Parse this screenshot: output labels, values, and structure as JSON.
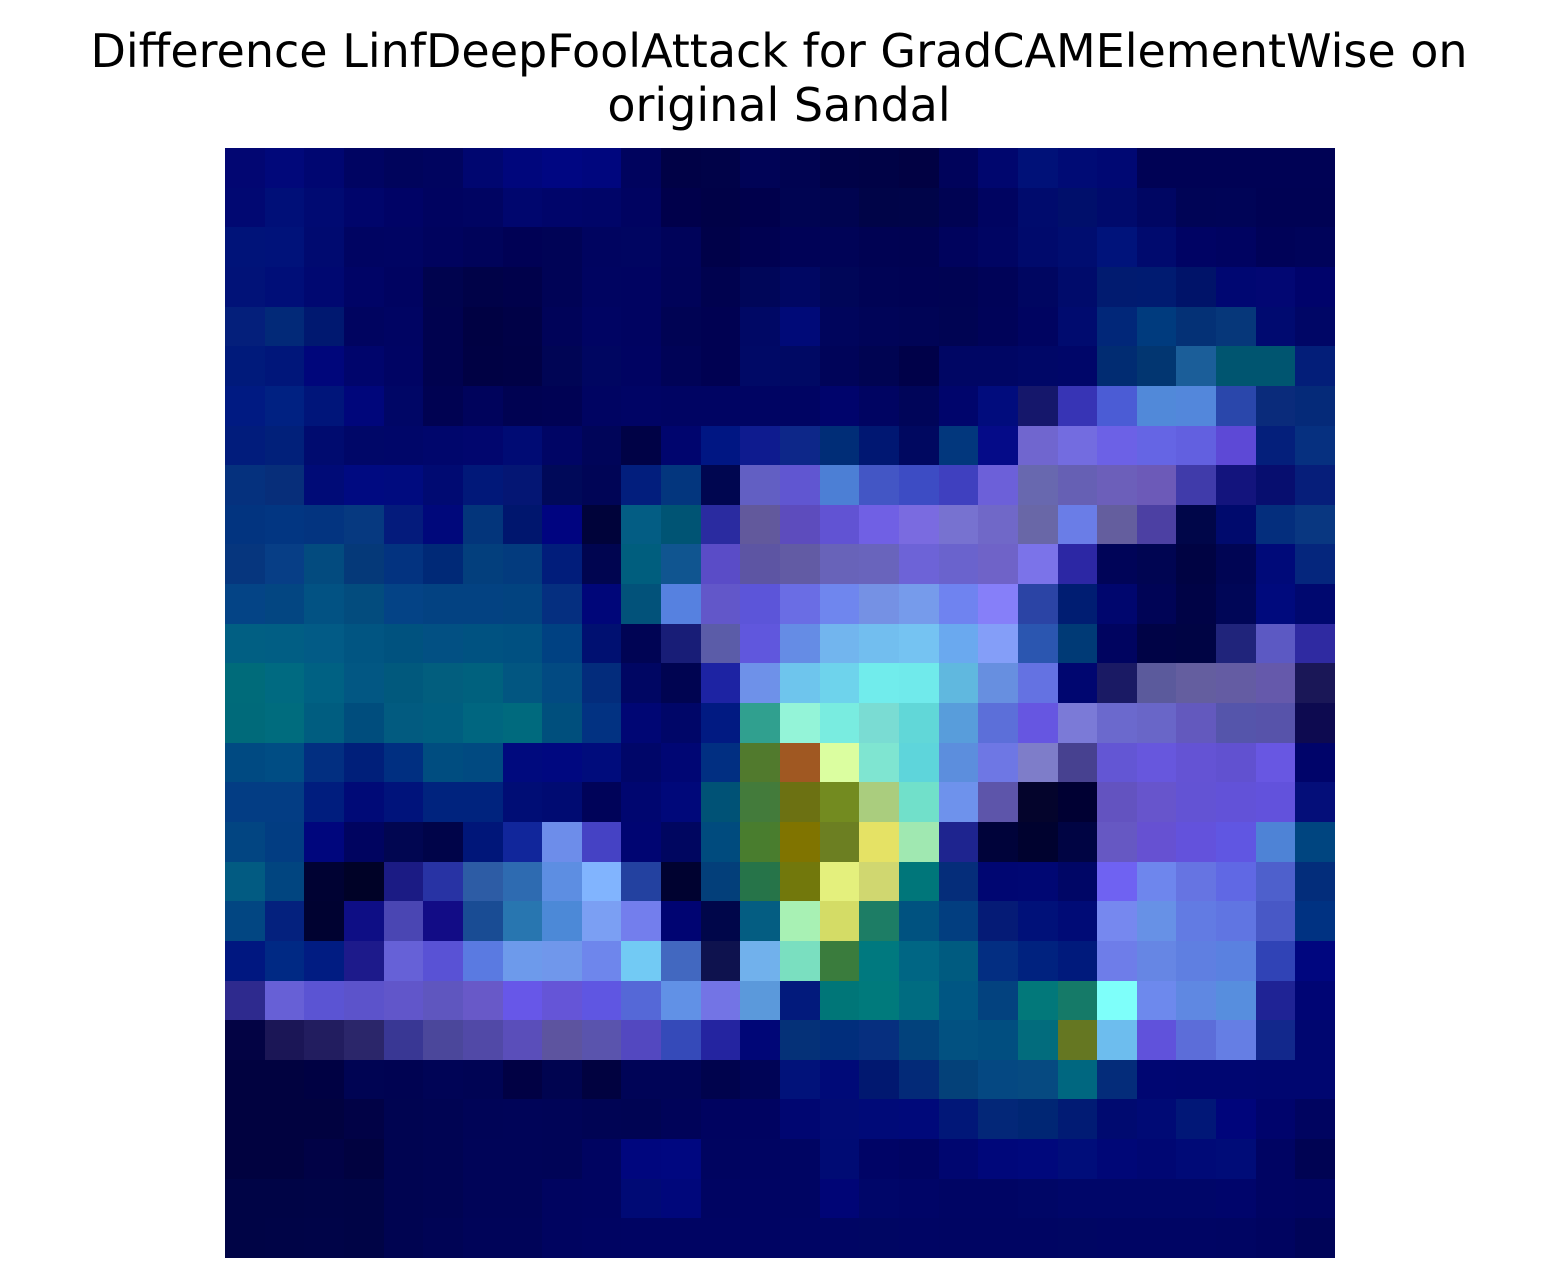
{
  "chart_data": {
    "type": "heatmap",
    "title": "Difference LinfDeepFoolAttack for GradCAMElementWise on original Sandal",
    "title_lines": [
      "Difference LinfDeepFoolAttack for GradCAMElementWise on",
      "original Sandal"
    ],
    "axes_visible": false,
    "xlabel": "",
    "ylabel": "",
    "grid": false,
    "legend": "none",
    "rows": 28,
    "cols": 28,
    "cells": [
      [
        "#020672",
        "#01087a",
        "#000671",
        "#000462",
        "#00045c",
        "#00045f",
        "#000670",
        "#00067c",
        "#000682",
        "#00067e",
        "#00035e",
        "#000146",
        "#000248",
        "#000356",
        "#000351",
        "#000248",
        "#000246",
        "#010143",
        "#00035b",
        "#00066e",
        "#001178",
        "#000b75",
        "#000873",
        "#000255",
        "#000255",
        "#000255",
        "#000255",
        "#000255"
      ],
      [
        "#010872",
        "#000f78",
        "#000a72",
        "#00056b",
        "#000366",
        "#000360",
        "#000462",
        "#00066e",
        "#00056a",
        "#000568",
        "#000361",
        "#00004b",
        "#000147",
        "#00004c",
        "#000452",
        "#000450",
        "#000448",
        "#000449",
        "#000353",
        "#000461",
        "#000b6d",
        "#000f6b",
        "#000a6c",
        "#000663",
        "#000456",
        "#000457",
        "#000254",
        "#000254"
      ],
      [
        "#001379",
        "#00127a",
        "#000a70",
        "#000462",
        "#000463",
        "#00035e",
        "#00035a",
        "#000155",
        "#000356",
        "#000460",
        "#000561",
        "#00035a",
        "#000149",
        "#000151",
        "#000257",
        "#000357",
        "#000253",
        "#000252",
        "#00035d",
        "#000563",
        "#000a6c",
        "#000d70",
        "#00137b",
        "#000a6e",
        "#000364",
        "#000361",
        "#000258",
        "#00035a"
      ],
      [
        "#011278",
        "#000e78",
        "#000871",
        "#000466",
        "#000361",
        "#00034e",
        "#000248",
        "#00014b",
        "#000356",
        "#000461",
        "#000361",
        "#000359",
        "#00024f",
        "#000659",
        "#000763",
        "#000658",
        "#000355",
        "#000254",
        "#000353",
        "#000358",
        "#000661",
        "#000b6b",
        "#011b70",
        "#001b71",
        "#001369",
        "#000772",
        "#020773",
        "#00036b"
      ],
      [
        "#041f7b",
        "#022978",
        "#001870",
        "#000460",
        "#000463",
        "#00024f",
        "#000143",
        "#000147",
        "#000359",
        "#000463",
        "#000361",
        "#000354",
        "#000152",
        "#000865",
        "#000a78",
        "#00055c",
        "#000458",
        "#000456",
        "#000453",
        "#000359",
        "#000461",
        "#000b6f",
        "#012779",
        "#003b7e",
        "#043176",
        "#06377a",
        "#000a70",
        "#000666"
      ],
      [
        "#001a7b",
        "#00167a",
        "#00067b",
        "#00056c",
        "#000464",
        "#00024f",
        "#000144",
        "#000146",
        "#000555",
        "#000661",
        "#000362",
        "#000357",
        "#000152",
        "#000966",
        "#000964",
        "#000459",
        "#000452",
        "#000149",
        "#000664",
        "#000664",
        "#000767",
        "#000669",
        "#012c72",
        "#023671",
        "#1b5e99",
        "#005570",
        "#005570",
        "#031e79"
      ],
      [
        "#001a82",
        "#002182",
        "#00157a",
        "#00067b",
        "#000666",
        "#000252",
        "#00035c",
        "#000252",
        "#000254",
        "#000462",
        "#000465",
        "#000463",
        "#000463",
        "#000463",
        "#000463",
        "#00046c",
        "#000462",
        "#000559",
        "#00056c",
        "#010c7d",
        "#15176b",
        "#3734b5",
        "#4b5cd5",
        "#5189d9",
        "#5387db",
        "#2a47ab",
        "#0a2b7b",
        "#052a79"
      ],
      [
        "#011c7c",
        "#01207a",
        "#000b6f",
        "#000768",
        "#000669",
        "#00066c",
        "#01066e",
        "#000b74",
        "#000565",
        "#000559",
        "#000246",
        "#00056e",
        "#001683",
        "#0e1b8f",
        "#0d2789",
        "#002d77",
        "#001772",
        "#000860",
        "#02377d",
        "#050b88",
        "#7066cf",
        "#736ce0",
        "#6c61e6",
        "#6565e4",
        "#6260e0",
        "#5d49d6",
        "#041f7b",
        "#063080"
      ],
      [
        "#05317e",
        "#072e7a",
        "#000b77",
        "#000a81",
        "#000b7f",
        "#000a72",
        "#011879",
        "#041674",
        "#000959",
        "#000556",
        "#021e7d",
        "#03367e",
        "#000650",
        "#625fc3",
        "#6056d1",
        "#4c7fd5",
        "#4356c5",
        "#3d4cc4",
        "#3f40bf",
        "#6c60d9",
        "#6868af",
        "#6660b4",
        "#6c5fba",
        "#6c5ab8",
        "#403baa",
        "#13147d",
        "#070e6f",
        "#061e7a"
      ],
      [
        "#023480",
        "#023682",
        "#033480",
        "#063980",
        "#041b7c",
        "#00087b",
        "#03357b",
        "#00166e",
        "#000480",
        "#00033a",
        "#035d84",
        "#005474",
        "#2a2ba0",
        "#62599c",
        "#5d4cbd",
        "#6153d3",
        "#7060e4",
        "#7a6be0",
        "#7772d0",
        "#7068c8",
        "#6967a7",
        "#6a7de7",
        "#645e9e",
        "#4c40a3",
        "#000649",
        "#000a6d",
        "#042e7d",
        "#093781"
      ],
      [
        "#06367e",
        "#073e86",
        "#034b7f",
        "#053979",
        "#033380",
        "#002977",
        "#033f7d",
        "#033b7e",
        "#011d7b",
        "#000550",
        "#005e7e",
        "#105590",
        "#5a4cc7",
        "#5d55a3",
        "#625ba4",
        "#6863b9",
        "#6964bc",
        "#6d63d7",
        "#6a63cd",
        "#6f63c8",
        "#7b73e9",
        "#2c27a4",
        "#000458",
        "#000552",
        "#000343",
        "#000554",
        "#000a79",
        "#05267d"
      ],
      [
        "#044486",
        "#034682",
        "#025283",
        "#034c7e",
        "#044386",
        "#034282",
        "#034282",
        "#024380",
        "#052f80",
        "#000679",
        "#02527a",
        "#5681e0",
        "#6257c9",
        "#5c55d9",
        "#6a6de4",
        "#6f86ee",
        "#7591e4",
        "#769beb",
        "#6f83f0",
        "#867ff9",
        "#2b44a5",
        "#001d72",
        "#00066e",
        "#000456",
        "#000346",
        "#000657",
        "#000a7d",
        "#00086f"
      ],
      [
        "#015f83",
        "#015e84",
        "#025b86",
        "#015582",
        "#00527f",
        "#025083",
        "#005281",
        "#005081",
        "#004182",
        "#001071",
        "#000454",
        "#181d77",
        "#5b5ca8",
        "#6057dd",
        "#658ce5",
        "#72b5ee",
        "#72beef",
        "#75c3f2",
        "#6aa9ef",
        "#849ef8",
        "#2b56b0",
        "#003a76",
        "#000460",
        "#000346",
        "#000444",
        "#20247b",
        "#5c59c3",
        "#2f2aa1"
      ],
      [
        "#006b7a",
        "#006a81",
        "#006183",
        "#025783",
        "#01597d",
        "#025e7e",
        "#00617e",
        "#025681",
        "#024a82",
        "#032c7c",
        "#000663",
        "#000451",
        "#1d23a3",
        "#6e91e9",
        "#6ec5ed",
        "#6ed3ec",
        "#71ecec",
        "#70eaeb",
        "#60b8df",
        "#678fe0",
        "#6472e2",
        "#000670",
        "#1a1a64",
        "#5b5a9c",
        "#645e9f",
        "#645ca3",
        "#6559ab",
        "#1a1757"
      ],
      [
        "#006a7a",
        "#006c7e",
        "#005d80",
        "#004d7d",
        "#025b80",
        "#005e80",
        "#006680",
        "#006a7e",
        "#004f7d",
        "#023282",
        "#000674",
        "#000668",
        "#011a82",
        "#30a08f",
        "#94f4d8",
        "#79ece0",
        "#7adcd3",
        "#61d7d8",
        "#589ddb",
        "#5c6fd9",
        "#6656e1",
        "#7b7ad7",
        "#6b69cd",
        "#6966c8",
        "#6359be",
        "#5555ab",
        "#5753aa",
        "#0d0a50"
      ],
      [
        "#004a82",
        "#004d84",
        "#022f81",
        "#001f7a",
        "#002f81",
        "#004d80",
        "#014a81",
        "#000a7e",
        "#000880",
        "#000c7c",
        "#000669",
        "#000674",
        "#012f82",
        "#517a2d",
        "#a05822",
        "#dbfea0",
        "#7fe5d1",
        "#5ed5db",
        "#5c8edd",
        "#6e77e4",
        "#7e7dc9",
        "#474190",
        "#6356d4",
        "#6757dd",
        "#6453d4",
        "#6151d0",
        "#6857e2",
        "#00046a"
      ],
      [
        "#033d84",
        "#033d84",
        "#001d7e",
        "#000a77",
        "#00137b",
        "#00237e",
        "#00237e",
        "#000d75",
        "#000b72",
        "#000359",
        "#000670",
        "#00087a",
        "#005276",
        "#437b3b",
        "#6c7112",
        "#738b20",
        "#aacd7e",
        "#71e0ca",
        "#6e92ec",
        "#5d55aa",
        "#04042c",
        "#000033",
        "#6353c0",
        "#6755cc",
        "#6353d4",
        "#6252d8",
        "#6252dc",
        "#040e79"
      ],
      [
        "#024582",
        "#023d82",
        "#00067d",
        "#000460",
        "#010651",
        "#000449",
        "#001679",
        "#11269b",
        "#6d8dea",
        "#4542c4",
        "#000572",
        "#000660",
        "#004b7e",
        "#497d2e",
        "#807400",
        "#6c7f22",
        "#e5e265",
        "#a0e8b1",
        "#1e248f",
        "#00033a",
        "#00022f",
        "#000443",
        "#6658c3",
        "#6651d2",
        "#6352dc",
        "#6056e2",
        "#4e83d6",
        "#004580"
      ],
      [
        "#025b82",
        "#014580",
        "#000233",
        "#000227",
        "#1b1b84",
        "#2833a4",
        "#2d5ca5",
        "#2e6bb1",
        "#5d8ee2",
        "#81b4fe",
        "#2341a0",
        "#000230",
        "#033f7a",
        "#267449",
        "#72780c",
        "#e4f07d",
        "#d0d770",
        "#00767a",
        "#052d7a",
        "#000672",
        "#000773",
        "#000666",
        "#6f62f2",
        "#6e86ed",
        "#6674e2",
        "#6068e4",
        "#4e60cc",
        "#032d7b"
      ],
      [
        "#024682",
        "#04217e",
        "#000231",
        "#0e0e85",
        "#4a46b3",
        "#120c86",
        "#194c94",
        "#2876b0",
        "#4c89d7",
        "#7b9ff3",
        "#737eed",
        "#000472",
        "#00064a",
        "#045d82",
        "#a8f1b4",
        "#d4dc66",
        "#1d7d65",
        "#005280",
        "#023e80",
        "#051b76",
        "#001179",
        "#000b76",
        "#7688ef",
        "#6791e6",
        "#627be3",
        "#6075e2",
        "#4858c6",
        "#003282"
      ],
      [
        "#001780",
        "#002984",
        "#011c82",
        "#1d1a8b",
        "#6661d7",
        "#5952d5",
        "#5a7ae1",
        "#6d9aeb",
        "#7097eb",
        "#6e86ec",
        "#72caf4",
        "#4268c0",
        "#0e124e",
        "#71b1ec",
        "#7adfc0",
        "#3a7c3d",
        "#00797f",
        "#006684",
        "#005b80",
        "#032e82",
        "#00227f",
        "#001a7c",
        "#6e7de9",
        "#6686e4",
        "#5f7fe1",
        "#5a81e0",
        "#3043b6",
        "#00067f"
      ],
      [
        "#2e2a8e",
        "#6760d6",
        "#5b54d3",
        "#5c53cb",
        "#6156ca",
        "#5f56bf",
        "#6859c8",
        "#6757e8",
        "#6555d7",
        "#5f56e2",
        "#5568d7",
        "#6191e6",
        "#7374e5",
        "#5b99db",
        "#021a7c",
        "#007678",
        "#007a7c",
        "#006c81",
        "#005683",
        "#03427f",
        "#02787a",
        "#157a68",
        "#7efffa",
        "#6d89ed",
        "#5f88e2",
        "#578ede",
        "#1f2395",
        "#000574"
      ],
      [
        "#030344",
        "#1b1656",
        "#221d5f",
        "#2b266a",
        "#393794",
        "#4b479b",
        "#5149a7",
        "#5a4eba",
        "#5d549f",
        "#5a54ad",
        "#5348c0",
        "#354ab9",
        "#2424a0",
        "#000677",
        "#053178",
        "#012e7c",
        "#062f7f",
        "#02427c",
        "#025181",
        "#014e80",
        "#026c7d",
        "#657722",
        "#6dbdee",
        "#6052db",
        "#5c6dd9",
        "#657ee4",
        "#12288c",
        "#000670"
      ],
      [
        "#010240",
        "#010240",
        "#000143",
        "#000453",
        "#000352",
        "#000456",
        "#000454",
        "#010144",
        "#000450",
        "#010240",
        "#000457",
        "#000457",
        "#00034d",
        "#000456",
        "#01127a",
        "#000a78",
        "#011870",
        "#032a78",
        "#044179",
        "#054882",
        "#064a81",
        "#006780",
        "#042c7a",
        "#000672",
        "#000671",
        "#000671",
        "#000670",
        "#000670"
      ],
      [
        "#010240",
        "#010240",
        "#010240",
        "#010246",
        "#000451",
        "#000453",
        "#000457",
        "#000458",
        "#000457",
        "#000454",
        "#000453",
        "#000359",
        "#000360",
        "#000361",
        "#000671",
        "#010b75",
        "#000a78",
        "#00097a",
        "#011778",
        "#032778",
        "#002674",
        "#011b74",
        "#000a70",
        "#000a75",
        "#011777",
        "#00057b",
        "#00046c",
        "#000460"
      ],
      [
        "#010240",
        "#010240",
        "#010246",
        "#010240",
        "#000451",
        "#000453",
        "#000458",
        "#000458",
        "#000457",
        "#000461",
        "#00067e",
        "#000780",
        "#000460",
        "#000462",
        "#000563",
        "#000b74",
        "#000466",
        "#000463",
        "#000670",
        "#00077a",
        "#00087c",
        "#000d7a",
        "#000777",
        "#000773",
        "#000a77",
        "#000c78",
        "#000463",
        "#000353"
      ],
      [
        "#000446",
        "#000446",
        "#000447",
        "#000446",
        "#000451",
        "#000453",
        "#000458",
        "#000458",
        "#000460",
        "#000461",
        "#000a75",
        "#00077b",
        "#000462",
        "#000463",
        "#000563",
        "#000576",
        "#000669",
        "#000567",
        "#000564",
        "#000564",
        "#000666",
        "#000669",
        "#000669",
        "#000669",
        "#000669",
        "#00056b",
        "#000463",
        "#000461"
      ],
      [
        "#000446",
        "#000447",
        "#000448",
        "#000446",
        "#000451",
        "#000455",
        "#000459",
        "#000459",
        "#000460",
        "#000462",
        "#000463",
        "#000463",
        "#000463",
        "#000463",
        "#000564",
        "#000564",
        "#000663",
        "#000564",
        "#000563",
        "#000563",
        "#000563",
        "#000663",
        "#000564",
        "#000564",
        "#000564",
        "#000563",
        "#000460",
        "#000458"
      ]
    ]
  }
}
